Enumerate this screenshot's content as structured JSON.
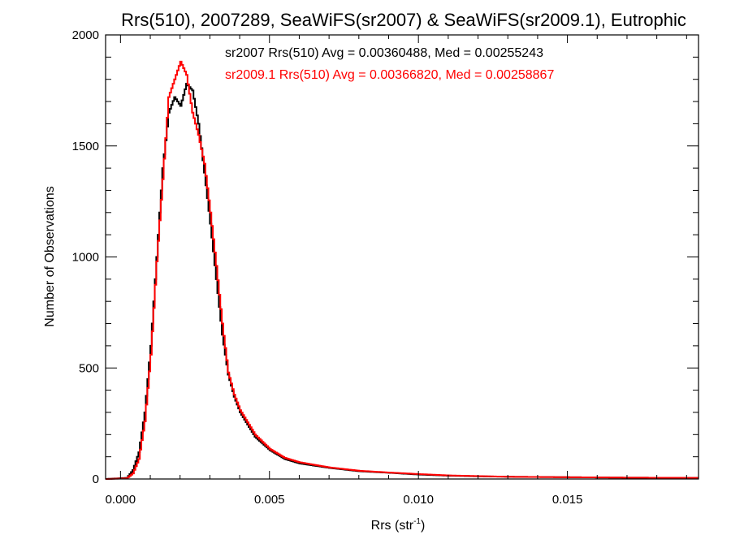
{
  "chart_data": {
    "type": "line",
    "step": true,
    "title": "Rrs(510), 2007289, SeaWiFS(sr2007) & SeaWiFS(sr2009.1), Eutrophic",
    "xlabel_main": "Rrs (str",
    "xlabel_sup": "-1",
    "xlabel_close": ")",
    "ylabel": "Number of Observations",
    "xlim": [
      -0.0005,
      0.0194
    ],
    "ylim": [
      0,
      2000
    ],
    "x_ticks": [
      0.0,
      0.005,
      0.01,
      0.015
    ],
    "x_tick_labels": [
      "0.000",
      "0.005",
      "0.010",
      "0.015"
    ],
    "y_ticks": [
      0,
      500,
      1000,
      1500,
      2000
    ],
    "y_tick_labels": [
      "0",
      "500",
      "1000",
      "1500",
      "2000"
    ],
    "x_minor_step": 0.001,
    "y_minor_step": 100,
    "grid": false,
    "annotations": [
      {
        "text": "sr2007 Rrs(510) Avg = 0.00360488, Med = 0.00255243",
        "color": "#000000"
      },
      {
        "text": "sr2009.1 Rrs(510) Avg = 0.00366820, Med = 0.00258867",
        "color": "#ff0000"
      }
    ],
    "series": [
      {
        "color": "#000000",
        "x": [
          -0.0005,
          0.0002,
          0.0004,
          0.0006,
          0.0008,
          0.001,
          0.0012,
          0.0014,
          0.0016,
          0.0018,
          0.002,
          0.0022,
          0.0024,
          0.0026,
          0.0028,
          0.003,
          0.0032,
          0.0034,
          0.0036,
          0.0038,
          0.004,
          0.0045,
          0.005,
          0.0055,
          0.006,
          0.007,
          0.008,
          0.009,
          0.01,
          0.011,
          0.012,
          0.013,
          0.015,
          0.017,
          0.0194
        ],
        "y": [
          0,
          5,
          40,
          120,
          300,
          600,
          1000,
          1400,
          1650,
          1720,
          1680,
          1780,
          1750,
          1600,
          1380,
          1150,
          900,
          650,
          470,
          370,
          300,
          190,
          130,
          90,
          70,
          50,
          35,
          28,
          20,
          15,
          12,
          10,
          8,
          6,
          5
        ]
      },
      {
        "color": "#ff0000",
        "x": [
          -0.0005,
          0.0002,
          0.0004,
          0.0006,
          0.0008,
          0.001,
          0.0012,
          0.0014,
          0.0016,
          0.0018,
          0.002,
          0.0022,
          0.0024,
          0.0026,
          0.0028,
          0.003,
          0.0032,
          0.0034,
          0.0036,
          0.0038,
          0.004,
          0.0045,
          0.005,
          0.0055,
          0.006,
          0.007,
          0.008,
          0.009,
          0.01,
          0.011,
          0.012,
          0.013,
          0.015,
          0.017,
          0.0194
        ],
        "y": [
          0,
          3,
          25,
          90,
          260,
          560,
          980,
          1350,
          1720,
          1800,
          1880,
          1820,
          1650,
          1550,
          1420,
          1200,
          960,
          700,
          480,
          380,
          310,
          200,
          135,
          95,
          75,
          52,
          37,
          29,
          22,
          16,
          13,
          10,
          8,
          6,
          5
        ]
      }
    ]
  }
}
